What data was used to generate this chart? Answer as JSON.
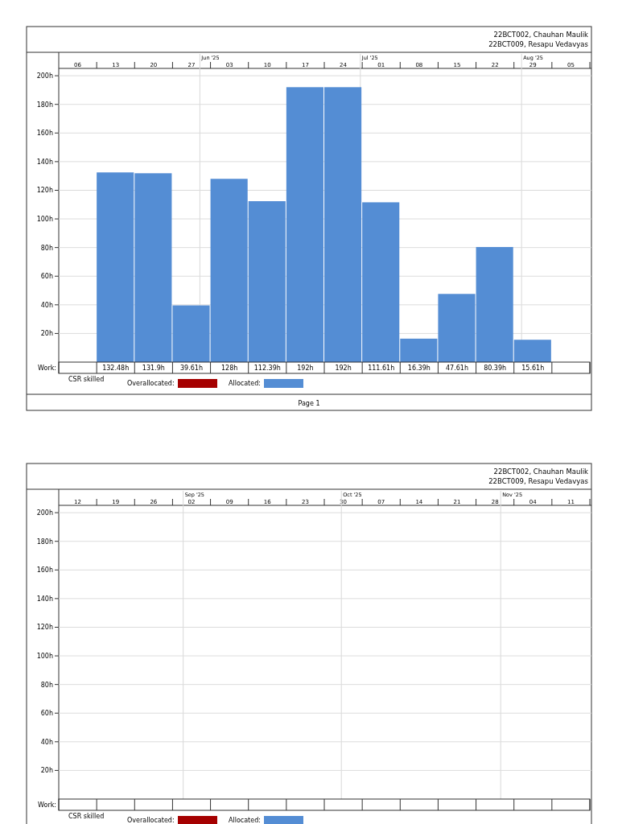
{
  "chart_data": [
    {
      "type": "bar",
      "title": "22BCT002, Chauhan Maulik",
      "subtitle": "22BCT009, Resapu Vedavyas",
      "categories": [
        "06",
        "13",
        "20",
        "27",
        "03",
        "10",
        "17",
        "24",
        "01",
        "08",
        "15",
        "22",
        "29",
        "05"
      ],
      "values": [
        null,
        132.48,
        131.9,
        39.61,
        128,
        112.39,
        192,
        192,
        111.61,
        16.39,
        47.61,
        80.39,
        15.61,
        null
      ],
      "value_labels": [
        null,
        "132.48h",
        "131.9h",
        "39.61h",
        "128h",
        "112.39h",
        "192h",
        "192h",
        "111.61h",
        "16.39h",
        "47.61h",
        "80.39h",
        "15.61h",
        null
      ],
      "color": "#548dd4",
      "ylim": [
        0,
        204
      ],
      "yticks": [
        {
          "value": 20,
          "label": "20h"
        },
        {
          "value": 40,
          "label": "40h"
        },
        {
          "value": 60,
          "label": "60h"
        },
        {
          "value": 80,
          "label": "80h"
        },
        {
          "value": 100,
          "label": "100h"
        },
        {
          "value": 120,
          "label": "120h"
        },
        {
          "value": 140,
          "label": "140h"
        },
        {
          "value": 160,
          "label": "160h"
        },
        {
          "value": 180,
          "label": "180h"
        },
        {
          "value": 200,
          "label": "200h"
        }
      ],
      "grid": "y",
      "annotations": [
        "Jun '25",
        "Jul '25",
        "Aug '25",
        "Work:",
        "CSR skilled",
        "Overallocated:",
        "Allocated:",
        "Page 1"
      ]
    },
    {
      "type": "bar",
      "title": "22BCT002, Chauhan Maulik",
      "subtitle": "22BCT009, Resapu Vedavyas",
      "categories": [
        "12",
        "19",
        "26",
        "02",
        "09",
        "16",
        "23",
        "30",
        "07",
        "14",
        "21",
        "28",
        "04",
        "11"
      ],
      "values": [
        null,
        null,
        null,
        null,
        null,
        null,
        null,
        null,
        null,
        null,
        null,
        null,
        null,
        null
      ],
      "color": "#548dd4",
      "ylim": [
        0,
        204
      ],
      "yticks": [
        {
          "value": 20,
          "label": "20h"
        },
        {
          "value": 40,
          "label": "40h"
        },
        {
          "value": 60,
          "label": "60h"
        },
        {
          "value": 80,
          "label": "80h"
        },
        {
          "value": 100,
          "label": "100h"
        },
        {
          "value": 120,
          "label": "120h"
        },
        {
          "value": 140,
          "label": "140h"
        },
        {
          "value": 160,
          "label": "160h"
        },
        {
          "value": 180,
          "label": "180h"
        },
        {
          "value": 200,
          "label": "200h"
        }
      ],
      "grid": "y",
      "annotations": [
        "Sep '25",
        "Oct '25",
        "Nov '25",
        "Work:",
        "CSR skilled",
        "Overallocated:",
        "Allocated:"
      ]
    }
  ]
}
